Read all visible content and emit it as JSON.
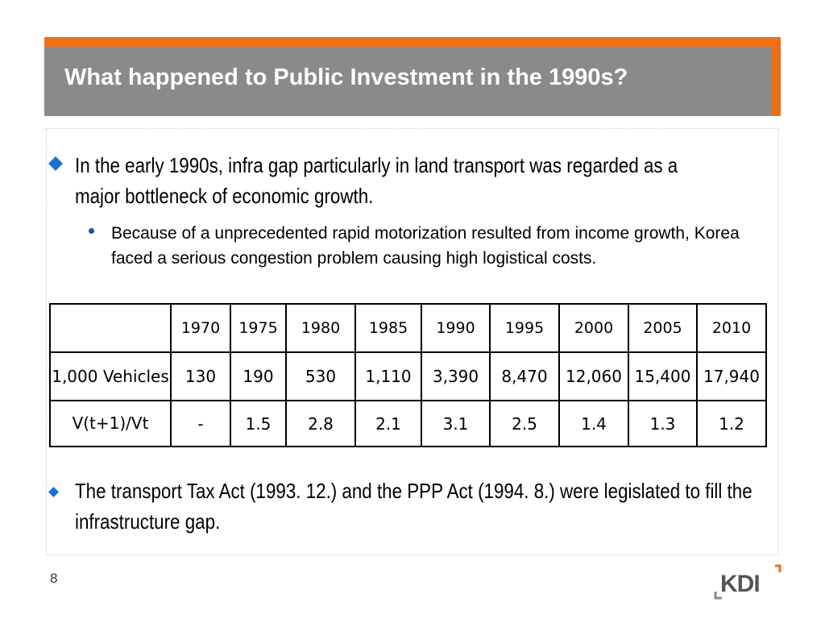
{
  "slide": {
    "title": "What happened to Public Investment in the 1990s?",
    "bullet_main": "In the early 1990s, infra gap particularly in land transport was regarded as a major bottleneck of economic growth.",
    "sub_bullet": "Because of a unprecedented rapid motorization resulted from income growth, Korea faced a serious congestion problem causing high logistical costs.",
    "bullet_second": "The transport Tax Act (1993. 12.) and the PPP Act (1994. 8.) were legislated to fill the infrastructure gap.",
    "page_number": "8",
    "logo_text": "KDI"
  },
  "table": {
    "header_blank": "",
    "years": [
      "1970",
      "1975",
      "1980",
      "1985",
      "1990",
      "1995",
      "2000",
      "2005",
      "2010"
    ],
    "rows": [
      {
        "label": "1,000 Vehicles",
        "values": [
          "130",
          "190",
          "530",
          "1,110",
          "3,390",
          "8,470",
          "12,060",
          "15,400",
          "17,940"
        ]
      },
      {
        "label": "V(t+1)/Vt",
        "values": [
          "-",
          "1.5",
          "2.8",
          "2.1",
          "3.1",
          "2.5",
          "1.4",
          "1.3",
          "1.2"
        ]
      }
    ]
  },
  "colors": {
    "accent_orange": "#f06e14",
    "title_bar_gray": "#8c8a88",
    "bullet_blue": "#1e6fd0"
  }
}
